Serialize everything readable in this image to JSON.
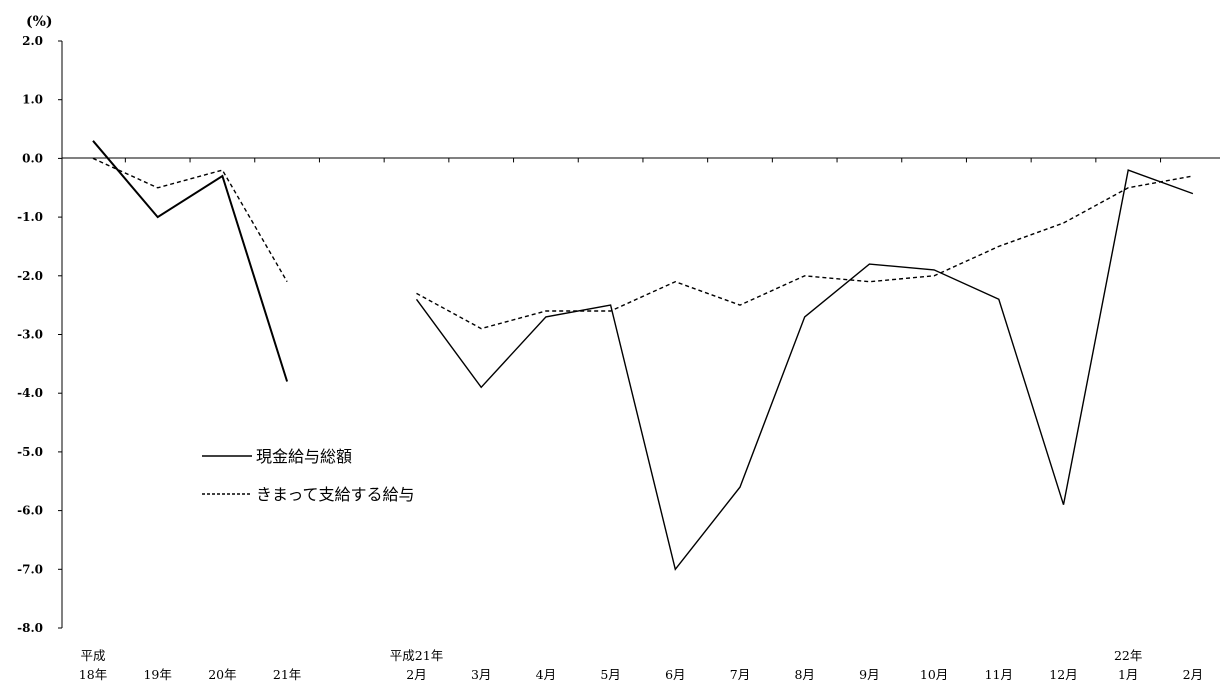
{
  "chart_data": {
    "type": "line",
    "ylabel": "(%)",
    "ylim": [
      -8.0,
      2.0
    ],
    "y_ticks": [
      "2.0",
      "1.0",
      "0.0",
      "-1.0",
      "-2.0",
      "-3.0",
      "-4.0",
      "-5.0",
      "-6.0",
      "-7.0",
      "-8.0"
    ],
    "y_tick_values": [
      2,
      1,
      0,
      -1,
      -2,
      -3,
      -4,
      -5,
      -6,
      -7,
      -8
    ],
    "grid": false,
    "legend_position": "lower-left",
    "categories": [
      {
        "top": "平成",
        "bottom": "18年"
      },
      {
        "top": "",
        "bottom": "19年"
      },
      {
        "top": "",
        "bottom": "20年"
      },
      {
        "top": "",
        "bottom": "21年"
      },
      {
        "top": "",
        "bottom": ""
      },
      {
        "top": "平成21年",
        "bottom": "2月"
      },
      {
        "top": "",
        "bottom": "3月"
      },
      {
        "top": "",
        "bottom": "4月"
      },
      {
        "top": "",
        "bottom": "5月"
      },
      {
        "top": "",
        "bottom": "6月"
      },
      {
        "top": "",
        "bottom": "7月"
      },
      {
        "top": "",
        "bottom": "8月"
      },
      {
        "top": "",
        "bottom": "9月"
      },
      {
        "top": "",
        "bottom": "10月"
      },
      {
        "top": "",
        "bottom": "11月"
      },
      {
        "top": "",
        "bottom": "12月"
      },
      {
        "top": "22年",
        "bottom": "1月"
      },
      {
        "top": "",
        "bottom": "2月"
      }
    ],
    "series": [
      {
        "name": "現金給与総額",
        "style": "solid",
        "color": "#000000",
        "values": [
          0.3,
          -1.0,
          -0.3,
          -3.8,
          null,
          -2.4,
          -3.9,
          -2.7,
          -2.5,
          -7.0,
          -5.6,
          -2.7,
          -1.8,
          -1.9,
          -2.4,
          -5.9,
          -0.2,
          -0.6
        ]
      },
      {
        "name": "きまって支給する給与",
        "style": "dashed",
        "color": "#000000",
        "values": [
          0.0,
          -0.5,
          -0.2,
          -2.1,
          null,
          -2.3,
          -2.9,
          -2.6,
          -2.6,
          -2.1,
          -2.5,
          -2.0,
          -2.1,
          -2.0,
          -1.5,
          -1.1,
          -0.5,
          -0.3
        ]
      }
    ]
  }
}
